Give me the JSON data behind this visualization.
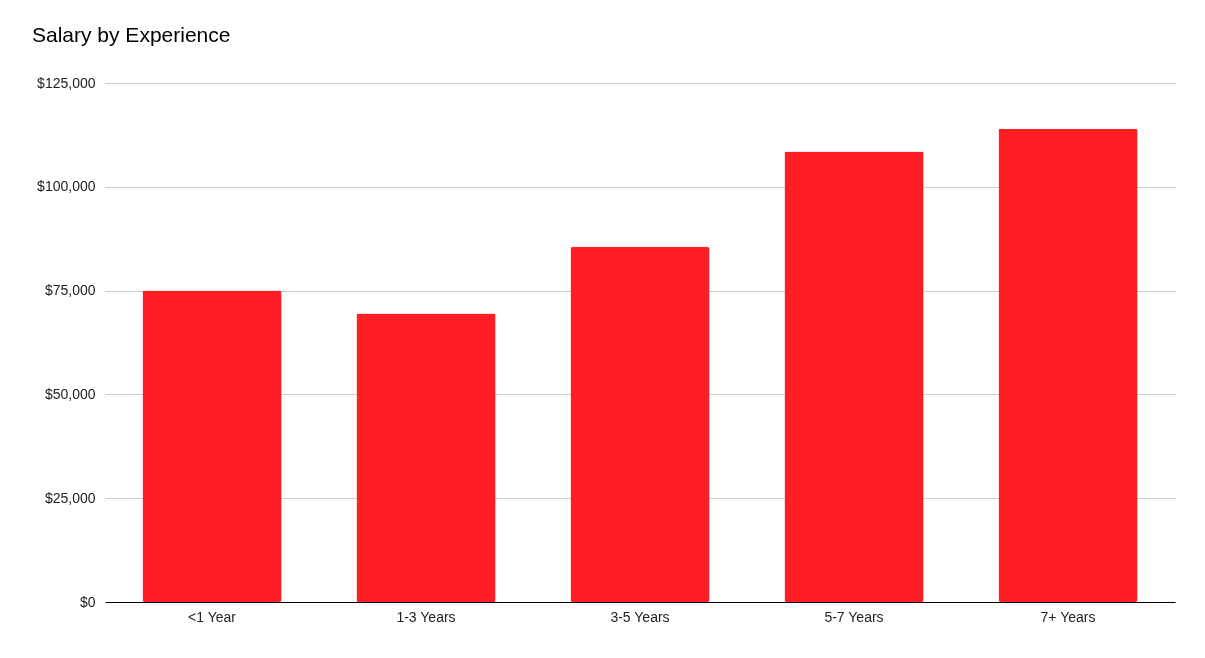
{
  "chart_data": {
    "type": "bar",
    "title": "Salary by Experience",
    "categories": [
      "<1 Year",
      "1-3 Years",
      "3-5 Years",
      "5-7 Years",
      "7+ Years"
    ],
    "values": [
      75000,
      69500,
      85500,
      108500,
      114000
    ],
    "color": "#ff1e24",
    "ylim": [
      0,
      125000
    ],
    "yticks": [
      {
        "value": 0,
        "label": "$0"
      },
      {
        "value": 25000,
        "label": "$25,000"
      },
      {
        "value": 50000,
        "label": "$50,000"
      },
      {
        "value": 75000,
        "label": "$75,000"
      },
      {
        "value": 100000,
        "label": "$100,000"
      },
      {
        "value": 125000,
        "label": "$125,000"
      }
    ],
    "grid": "y"
  }
}
